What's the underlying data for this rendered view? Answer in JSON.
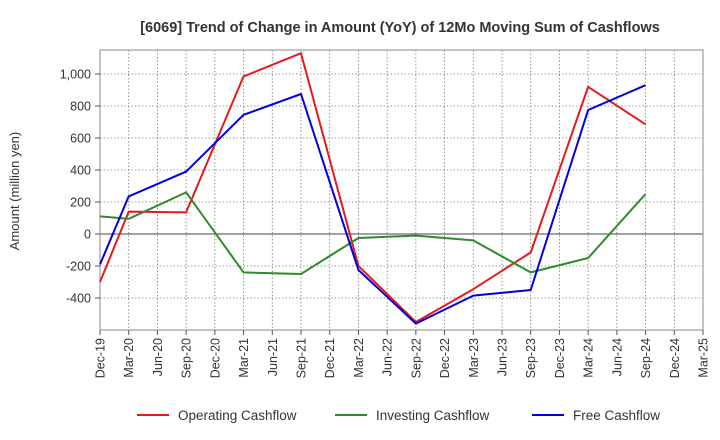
{
  "chart_data": {
    "type": "line",
    "title": "[6069]  Trend of Change in Amount (YoY) of 12Mo Moving Sum of Cashflows",
    "xlabel": "",
    "ylabel": "Amount (million yen)",
    "categories": [
      "Dec-19",
      "Mar-20",
      "Jun-20",
      "Sep-20",
      "Dec-20",
      "Mar-21",
      "Jun-21",
      "Sep-21",
      "Dec-21",
      "Mar-22",
      "Jun-22",
      "Sep-22",
      "Dec-22",
      "Mar-23",
      "Jun-23",
      "Sep-23",
      "Dec-23",
      "Mar-24",
      "Jun-24",
      "Sep-24",
      "Dec-24",
      "Mar-25"
    ],
    "ylim": [
      -600,
      1150
    ],
    "yticks": [
      -400,
      -200,
      0,
      200,
      400,
      600,
      800,
      1000
    ],
    "ytick_labels": [
      "-400",
      "-200",
      "0",
      "200",
      "400",
      "600",
      "800",
      "1,000"
    ],
    "grid": true,
    "legend_position": "bottom",
    "series": [
      {
        "name": "Operating Cashflow",
        "color": "#e41a1c",
        "values": [
          -300,
          140,
          null,
          135,
          null,
          985,
          null,
          1130,
          null,
          -200,
          null,
          -550,
          null,
          -345,
          null,
          -115,
          null,
          920,
          null,
          685,
          null,
          null
        ]
      },
      {
        "name": "Investing Cashflow",
        "color": "#2e8b2e",
        "values": [
          110,
          95,
          null,
          260,
          null,
          -240,
          null,
          -250,
          null,
          -25,
          null,
          -10,
          null,
          -40,
          null,
          -240,
          null,
          -150,
          null,
          250,
          null,
          null
        ]
      },
      {
        "name": "Free Cashflow",
        "color": "#0000e0",
        "values": [
          -190,
          235,
          null,
          390,
          null,
          745,
          null,
          875,
          null,
          -225,
          null,
          -560,
          null,
          -385,
          null,
          -350,
          null,
          775,
          null,
          930,
          null,
          null
        ]
      }
    ]
  }
}
